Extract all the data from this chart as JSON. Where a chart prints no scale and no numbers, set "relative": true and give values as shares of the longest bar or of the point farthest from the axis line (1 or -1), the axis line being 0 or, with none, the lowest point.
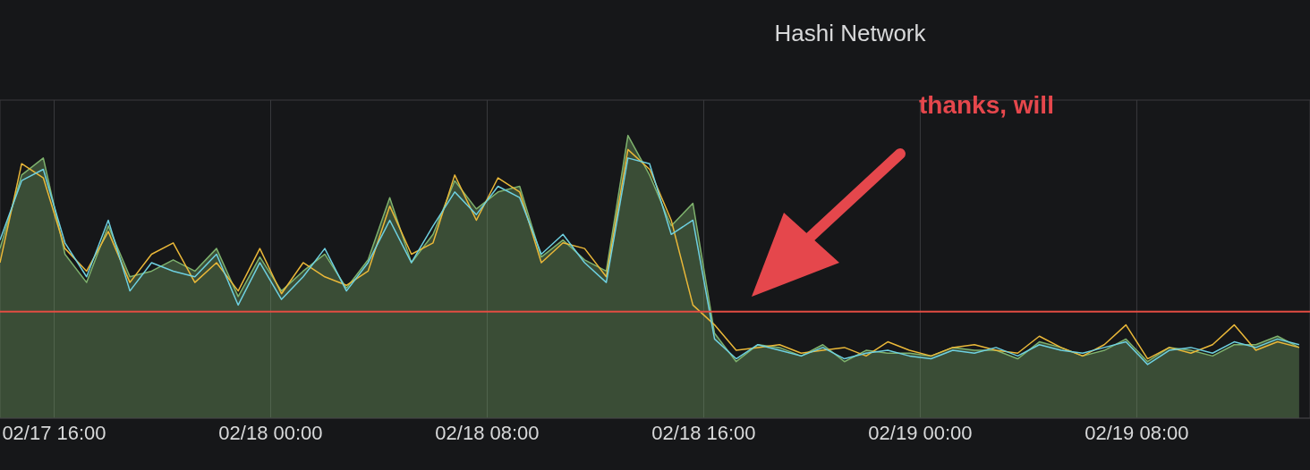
{
  "chart_data": {
    "type": "line",
    "title": "Hashi Network",
    "relative": true,
    "grid": true,
    "legend": false,
    "x": [
      "--02-17T14:00",
      "--02-17T14:48",
      "--02-17T15:36",
      "--02-17T16:24",
      "--02-17T17:12",
      "--02-17T18:00",
      "--02-17T18:48",
      "--02-17T19:36",
      "--02-17T20:24",
      "--02-17T21:12",
      "--02-17T22:00",
      "--02-17T22:48",
      "--02-17T23:36",
      "--02-18T00:24",
      "--02-18T01:12",
      "--02-18T02:00",
      "--02-18T02:48",
      "--02-18T03:36",
      "--02-18T04:24",
      "--02-18T05:12",
      "--02-18T06:00",
      "--02-18T06:48",
      "--02-18T07:36",
      "--02-18T08:24",
      "--02-18T09:12",
      "--02-18T10:00",
      "--02-18T10:48",
      "--02-18T11:36",
      "--02-18T12:24",
      "--02-18T13:12",
      "--02-18T14:00",
      "--02-18T14:48",
      "--02-18T15:36",
      "--02-18T16:24",
      "--02-18T17:12",
      "--02-18T18:00",
      "--02-18T18:48",
      "--02-18T19:36",
      "--02-18T20:24",
      "--02-18T21:12",
      "--02-18T22:00",
      "--02-18T22:48",
      "--02-18T23:36",
      "--02-19T00:24",
      "--02-19T01:12",
      "--02-19T02:00",
      "--02-19T02:48",
      "--02-19T03:36",
      "--02-19T04:24",
      "--02-19T05:12",
      "--02-19T06:00",
      "--02-19T06:48",
      "--02-19T07:36",
      "--02-19T08:24",
      "--02-19T09:12",
      "--02-19T10:00",
      "--02-19T10:48",
      "--02-19T11:36",
      "--02-19T12:24",
      "--02-19T13:12",
      "--02-19T14:00"
    ],
    "xlim": [
      "--02-17T14:00",
      "--02-19T14:24"
    ],
    "xticks": [
      {
        "value": "--02-17T16:00",
        "label": "02/17 16:00"
      },
      {
        "value": "--02-18T00:00",
        "label": "02/18 00:00"
      },
      {
        "value": "--02-18T08:00",
        "label": "02/18 08:00"
      },
      {
        "value": "--02-18T16:00",
        "label": "02/18 16:00"
      },
      {
        "value": "--02-19T00:00",
        "label": "02/19 00:00"
      },
      {
        "value": "--02-19T08:00",
        "label": "02/19 08:00"
      }
    ],
    "series": [
      {
        "type": "area",
        "color": "#7eb26d",
        "values": [
          0.6,
          0.86,
          0.92,
          0.58,
          0.48,
          0.68,
          0.5,
          0.52,
          0.56,
          0.52,
          0.6,
          0.43,
          0.57,
          0.45,
          0.52,
          0.58,
          0.46,
          0.56,
          0.78,
          0.55,
          0.65,
          0.84,
          0.74,
          0.8,
          0.82,
          0.57,
          0.63,
          0.56,
          0.52,
          1.0,
          0.86,
          0.68,
          0.76,
          0.3,
          0.2,
          0.26,
          0.25,
          0.22,
          0.26,
          0.2,
          0.24,
          0.23,
          0.23,
          0.22,
          0.25,
          0.24,
          0.24,
          0.21,
          0.27,
          0.25,
          0.22,
          0.24,
          0.28,
          0.2,
          0.25,
          0.24,
          0.22,
          0.26,
          0.26,
          0.29,
          0.25
        ]
      },
      {
        "type": "line",
        "color": "#eab839",
        "values": [
          0.55,
          0.9,
          0.85,
          0.6,
          0.52,
          0.66,
          0.48,
          0.58,
          0.62,
          0.48,
          0.55,
          0.45,
          0.6,
          0.44,
          0.55,
          0.5,
          0.47,
          0.52,
          0.75,
          0.58,
          0.62,
          0.86,
          0.7,
          0.85,
          0.8,
          0.55,
          0.62,
          0.6,
          0.5,
          0.95,
          0.88,
          0.7,
          0.4,
          0.33,
          0.24,
          0.25,
          0.26,
          0.23,
          0.24,
          0.25,
          0.22,
          0.27,
          0.24,
          0.22,
          0.25,
          0.26,
          0.24,
          0.23,
          0.29,
          0.25,
          0.22,
          0.26,
          0.33,
          0.21,
          0.25,
          0.23,
          0.26,
          0.33,
          0.24,
          0.27,
          0.25
        ]
      },
      {
        "type": "line",
        "color": "#6ed0e0",
        "values": [
          0.63,
          0.84,
          0.88,
          0.62,
          0.5,
          0.7,
          0.45,
          0.55,
          0.52,
          0.5,
          0.58,
          0.4,
          0.55,
          0.42,
          0.5,
          0.6,
          0.45,
          0.55,
          0.7,
          0.55,
          0.68,
          0.8,
          0.72,
          0.82,
          0.78,
          0.58,
          0.65,
          0.55,
          0.48,
          0.92,
          0.9,
          0.65,
          0.7,
          0.28,
          0.21,
          0.26,
          0.24,
          0.22,
          0.25,
          0.21,
          0.23,
          0.24,
          0.22,
          0.21,
          0.24,
          0.23,
          0.25,
          0.22,
          0.26,
          0.24,
          0.23,
          0.25,
          0.27,
          0.19,
          0.24,
          0.25,
          0.23,
          0.27,
          0.25,
          0.28,
          0.26
        ]
      }
    ],
    "ref_lines": [
      {
        "axis": "y",
        "value": 0.377,
        "color": "#e24d42"
      }
    ],
    "annotations": [
      "thanks, will"
    ]
  }
}
